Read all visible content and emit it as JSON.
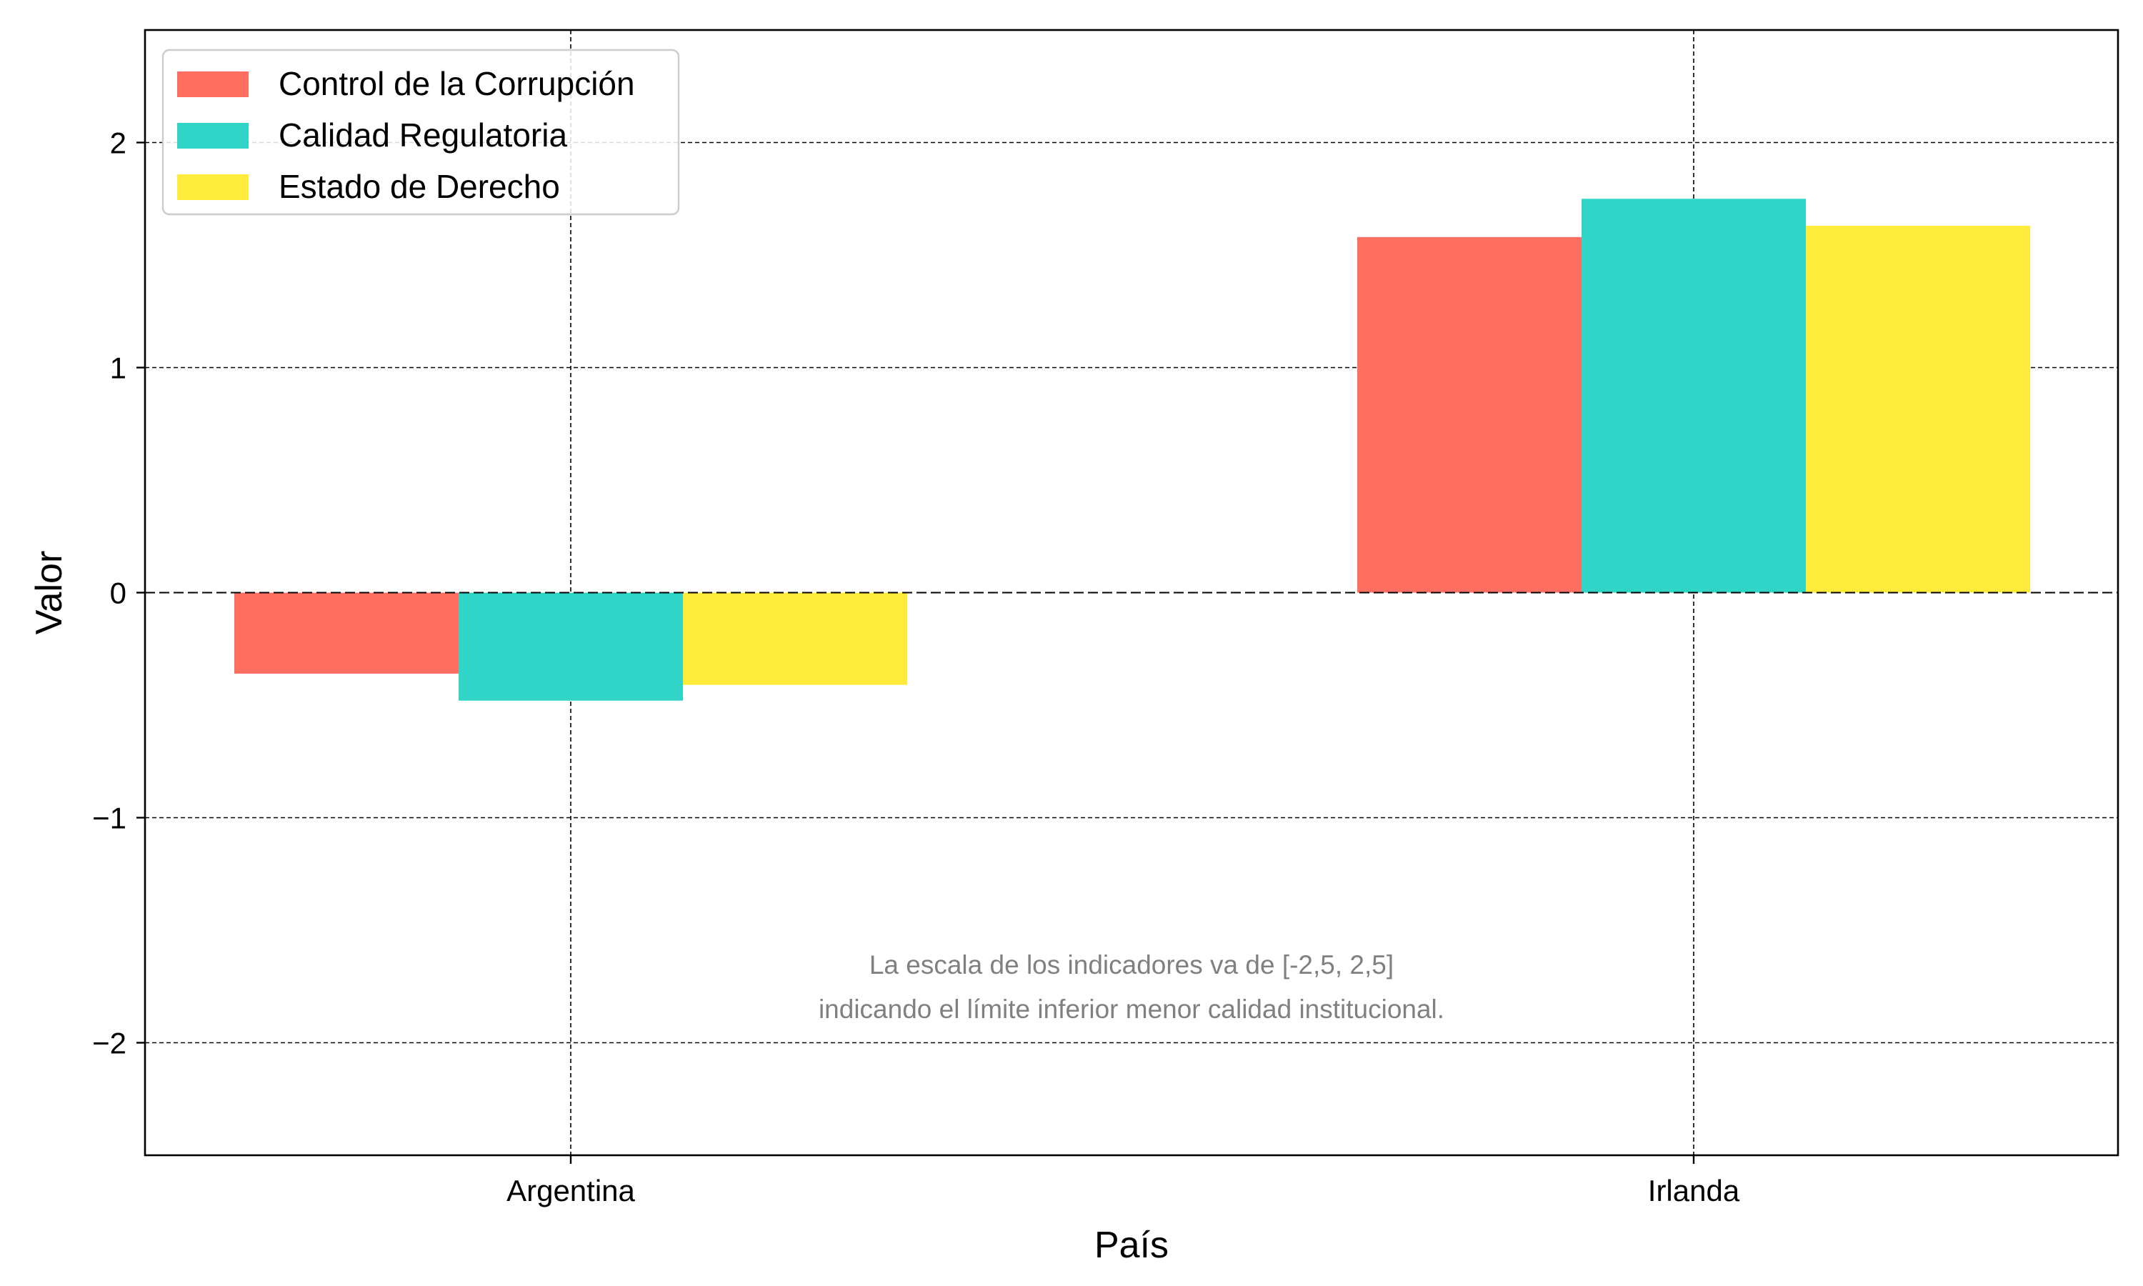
{
  "chart_data": {
    "type": "bar",
    "categories": [
      "Argentina",
      "Irlanda"
    ],
    "series": [
      {
        "name": "Control de la Corrupción",
        "values": [
          -0.36,
          1.58
        ],
        "color": "#FF6F61"
      },
      {
        "name": "Calidad Regulatoria",
        "values": [
          -0.48,
          1.75
        ],
        "color": "#30D5C8"
      },
      {
        "name": "Estado de Derecho",
        "values": [
          -0.41,
          1.63
        ],
        "color": "#FFEB3B"
      }
    ],
    "xlabel": "País",
    "ylabel": "Valor",
    "ylim": [
      -2.5,
      2.5
    ],
    "yticks": [
      {
        "value": -2,
        "label": "−2"
      },
      {
        "value": -1,
        "label": "−1"
      },
      {
        "value": 0,
        "label": "0"
      },
      {
        "value": 1,
        "label": "1"
      },
      {
        "value": 2,
        "label": "2"
      }
    ],
    "grid": true,
    "legend_position": "top-left",
    "annotation": [
      "La escala de los indicadores va de [-2,5, 2,5]",
      "indicando el límite inferior menor calidad institucional."
    ]
  }
}
